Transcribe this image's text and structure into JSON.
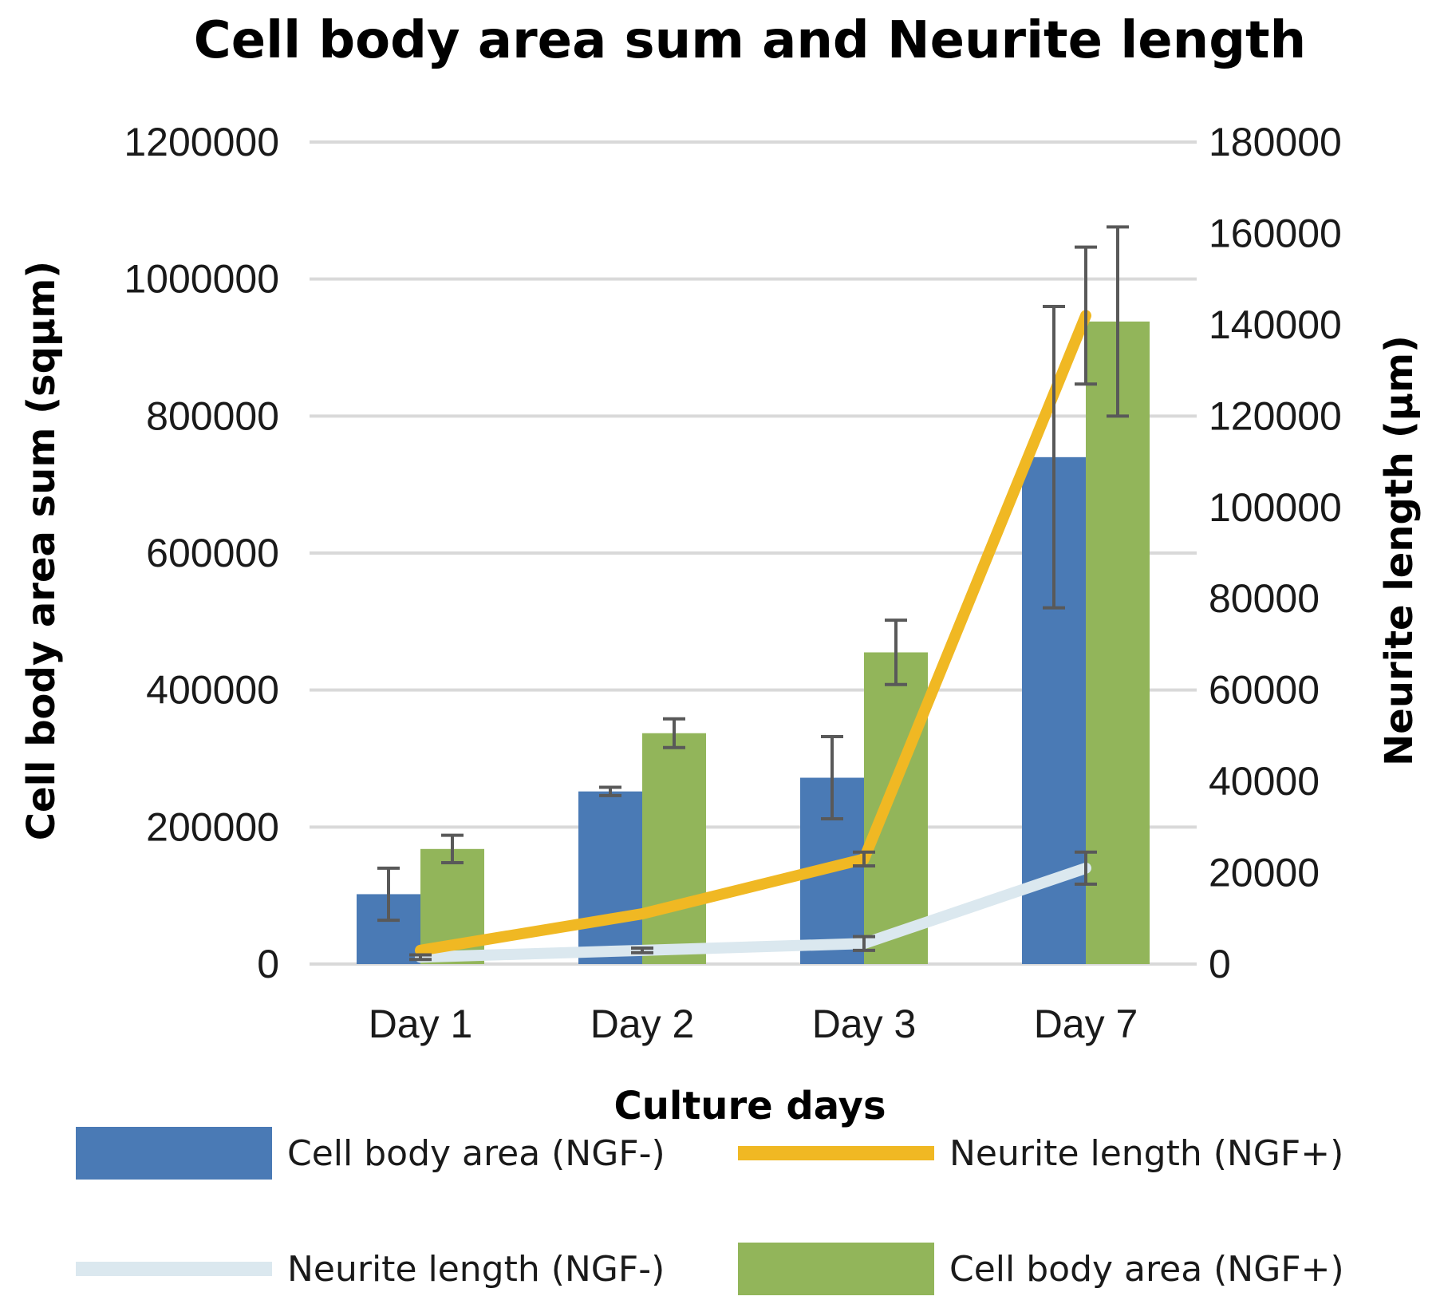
{
  "chart_data": {
    "type": "bar",
    "title": "Cell body area sum and Neurite length",
    "xlabel": "Culture days",
    "ylabel": "Cell body area sum (sqμm)",
    "y2label": "Neurite length (μm)",
    "categories": [
      "Day 1",
      "Day 2",
      "Day 3",
      "Day 7"
    ],
    "ylim": [
      0,
      1200000
    ],
    "y2lim": [
      0,
      180000
    ],
    "yticks": [
      0,
      200000,
      400000,
      600000,
      800000,
      1000000,
      1200000
    ],
    "y2ticks": [
      0,
      20000,
      40000,
      60000,
      80000,
      100000,
      120000,
      140000,
      160000,
      180000
    ],
    "grid": true,
    "legend_position": "bottom",
    "series": [
      {
        "name": "Cell body area (NGF-)",
        "kind": "bar",
        "axis": "left",
        "color": "#4a7ab5",
        "values": [
          102000,
          252000,
          272000,
          740000
        ],
        "errors": [
          38000,
          6000,
          60000,
          220000
        ]
      },
      {
        "name": "Cell body area (NGF+)",
        "kind": "bar",
        "axis": "left",
        "color": "#92b55a",
        "values": [
          168000,
          337000,
          455000,
          938000
        ],
        "errors": [
          20000,
          21000,
          47000,
          138000
        ]
      },
      {
        "name": "Neurite length (NGF+)",
        "kind": "line",
        "axis": "right",
        "color": "#f0b823",
        "values": [
          3000,
          11000,
          23000,
          142000
        ],
        "errors": [
          0,
          0,
          1500,
          15000
        ]
      },
      {
        "name": "Neurite length (NGF-)",
        "kind": "line",
        "axis": "right",
        "color": "#dbe8ef",
        "values": [
          1500,
          3000,
          4500,
          21000
        ],
        "errors": [
          500,
          500,
          1500,
          3500
        ]
      }
    ],
    "legend_order": [
      "Cell body area (NGF-)",
      "Neurite length (NGF+)",
      "Neurite length (NGF-)",
      "Cell body area (NGF+)"
    ]
  }
}
